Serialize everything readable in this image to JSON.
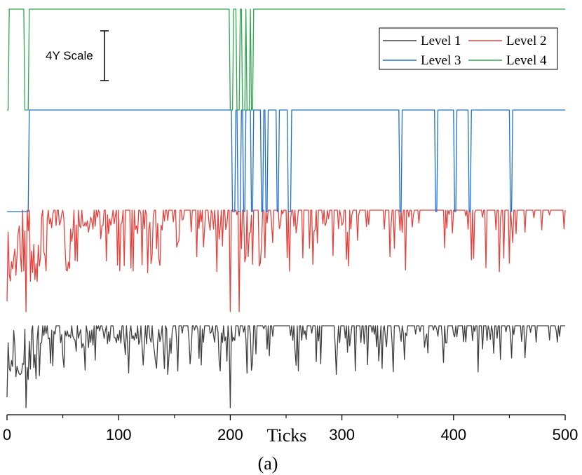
{
  "chart_data": {
    "type": "line",
    "xlabel": "Ticks",
    "caption": "(a)",
    "xlim": [
      0,
      500
    ],
    "x_ticks": [
      "0",
      "100",
      "200",
      "300",
      "400",
      "500"
    ],
    "scale_annotation": "4Y Scale",
    "legend_position": "top-right",
    "series": [
      {
        "name": "Level 1",
        "color": "#404040",
        "kind": "noisy",
        "base": 465,
        "spikes": [
          17,
          200
        ]
      },
      {
        "name": "Level 2",
        "color": "#e8413c",
        "kind": "noisy",
        "base": 300,
        "spikes": [
          17,
          200,
          208
        ]
      },
      {
        "name": "Level 3",
        "color": "#1f6fd0",
        "kind": "binary",
        "base": 157,
        "drops": [
          [
            0,
            19
          ],
          [
            202,
            204
          ],
          [
            207,
            209
          ],
          [
            212,
            213
          ],
          [
            219,
            220
          ],
          [
            228,
            229
          ],
          [
            232,
            233
          ],
          [
            242,
            243
          ],
          [
            252,
            254
          ],
          [
            352,
            353
          ],
          [
            384,
            385
          ],
          [
            401,
            402
          ],
          [
            414,
            415
          ],
          [
            451,
            452
          ]
        ]
      },
      {
        "name": "Level 4",
        "color": "#2ea84f",
        "kind": "binary",
        "base": 13,
        "drops": [
          [
            0,
            1
          ],
          [
            16,
            19
          ],
          [
            200,
            202
          ],
          [
            206,
            208
          ],
          [
            211,
            213
          ],
          [
            215,
            217
          ],
          [
            219,
            220
          ]
        ]
      }
    ]
  }
}
